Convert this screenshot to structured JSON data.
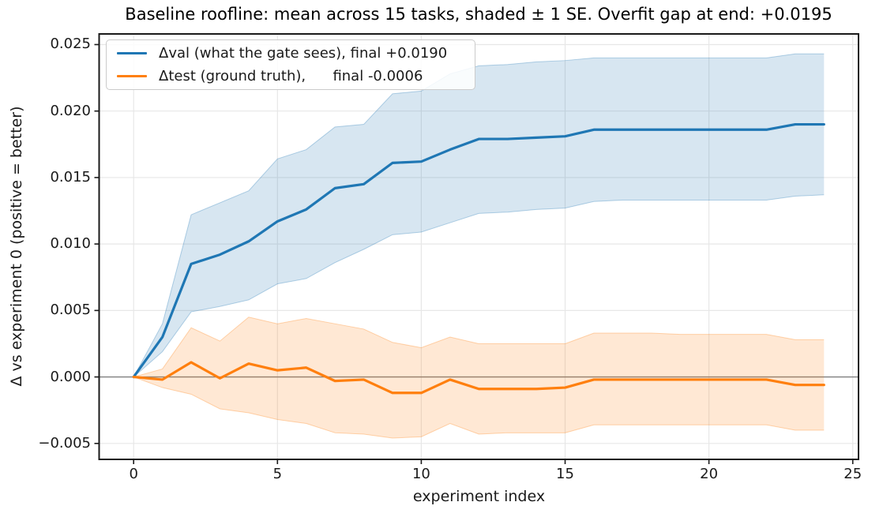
{
  "chart_data": {
    "type": "line",
    "title": "Baseline roofline: mean across 15 tasks, shaded ± 1 SE. Overfit gap at end: +0.0195",
    "xlabel": "experiment index",
    "ylabel": "Δ vs experiment 0 (positive = better)",
    "grid": true,
    "zero_line": true,
    "legend_position": "upper left",
    "xlim": [
      -1.2,
      25.2
    ],
    "ylim": [
      -0.0062,
      0.0258
    ],
    "xticks": [
      0,
      5,
      10,
      15,
      20,
      25
    ],
    "xtick_labels": [
      "0",
      "5",
      "10",
      "15",
      "20",
      "25"
    ],
    "yticks": [
      -0.005,
      0.0,
      0.005,
      0.01,
      0.015,
      0.02,
      0.025
    ],
    "ytick_labels": [
      "−0.005",
      "0.000",
      "0.005",
      "0.010",
      "0.015",
      "0.020",
      "0.025"
    ],
    "x": [
      0,
      1,
      2,
      3,
      4,
      5,
      6,
      7,
      8,
      9,
      10,
      11,
      12,
      13,
      14,
      15,
      16,
      17,
      18,
      19,
      20,
      21,
      22,
      23,
      24
    ],
    "series": [
      {
        "name": "Δval (what the gate sees), final +0.0190",
        "color": "#1f77b4",
        "band_fill": "rgba(31,119,180,0.18)",
        "band_edge": "rgba(31,119,180,0.32)",
        "values": [
          0.0,
          0.003,
          0.0085,
          0.0092,
          0.0102,
          0.0117,
          0.0126,
          0.0142,
          0.0145,
          0.0161,
          0.0162,
          0.0171,
          0.0179,
          0.0179,
          0.018,
          0.0181,
          0.0186,
          0.0186,
          0.0186,
          0.0186,
          0.0186,
          0.0186,
          0.0186,
          0.019,
          0.019
        ],
        "band_upper": [
          0.0,
          0.004,
          0.0122,
          0.0131,
          0.014,
          0.0164,
          0.0171,
          0.0188,
          0.019,
          0.0213,
          0.0215,
          0.0228,
          0.0234,
          0.0235,
          0.0237,
          0.0238,
          0.024,
          0.024,
          0.024,
          0.024,
          0.024,
          0.024,
          0.024,
          0.0243,
          0.0243
        ],
        "band_lower": [
          0.0,
          0.0019,
          0.0049,
          0.0053,
          0.0058,
          0.007,
          0.0074,
          0.0086,
          0.0096,
          0.0107,
          0.0109,
          0.0116,
          0.0123,
          0.0124,
          0.0126,
          0.0127,
          0.0132,
          0.0133,
          0.0133,
          0.0133,
          0.0133,
          0.0133,
          0.0133,
          0.0136,
          0.0137
        ],
        "final_value": "+0.0190"
      },
      {
        "name": "Δtest (ground truth),      final -0.0006",
        "color": "#ff7f0e",
        "band_fill": "rgba(255,127,14,0.18)",
        "band_edge": "rgba(255,127,14,0.32)",
        "values": [
          0.0,
          -0.0002,
          0.0011,
          -0.0001,
          0.001,
          0.0005,
          0.0007,
          -0.0003,
          -0.0002,
          -0.0012,
          -0.0012,
          -0.0002,
          -0.0009,
          -0.0009,
          -0.0009,
          -0.0008,
          -0.0002,
          -0.0002,
          -0.0002,
          -0.0002,
          -0.0002,
          -0.0002,
          -0.0002,
          -0.0006,
          -0.0006
        ],
        "band_upper": [
          0.0,
          0.0006,
          0.0037,
          0.0027,
          0.0045,
          0.004,
          0.0044,
          0.004,
          0.0036,
          0.0026,
          0.0022,
          0.003,
          0.0025,
          0.0025,
          0.0025,
          0.0025,
          0.0033,
          0.0033,
          0.0033,
          0.0032,
          0.0032,
          0.0032,
          0.0032,
          0.0028,
          0.0028
        ],
        "band_lower": [
          0.0,
          -0.0008,
          -0.0013,
          -0.0024,
          -0.0027,
          -0.0032,
          -0.0035,
          -0.0042,
          -0.0043,
          -0.0046,
          -0.0045,
          -0.0035,
          -0.0043,
          -0.0042,
          -0.0042,
          -0.0042,
          -0.0036,
          -0.0036,
          -0.0036,
          -0.0036,
          -0.0036,
          -0.0036,
          -0.0036,
          -0.004,
          -0.004
        ],
        "final_value": "-0.0006"
      }
    ],
    "colors": {
      "grid": "#e7e7e7",
      "spine": "#1a1a1a",
      "zero_line": "#7f7f7f",
      "background": "#ffffff"
    }
  }
}
